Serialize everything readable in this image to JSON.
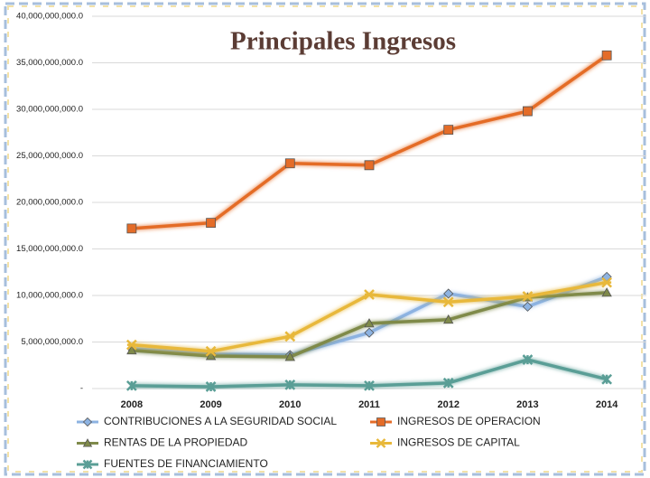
{
  "chart_data": {
    "type": "line",
    "title": "Principales Ingresos",
    "categories": [
      "2008",
      "2009",
      "2010",
      "2011",
      "2012",
      "2013",
      "2014"
    ],
    "series": [
      {
        "name": "CONTRIBUCIONES A LA SEGURIDAD SOCIAL",
        "color": "#8db3e2",
        "marker": "diamond",
        "values": [
          4300000000,
          3700000000,
          3600000000,
          6000000000,
          10200000000,
          8800000000,
          12000000000
        ]
      },
      {
        "name": "INGRESOS DE OPERACION",
        "color": "#e46c28",
        "marker": "square",
        "values": [
          17200000000,
          17800000000,
          24200000000,
          24000000000,
          27800000000,
          29800000000,
          35800000000
        ]
      },
      {
        "name": "RENTAS DE LA PROPIEDAD",
        "color": "#7f8a4a",
        "marker": "triangle",
        "values": [
          4100000000,
          3500000000,
          3400000000,
          7000000000,
          7400000000,
          9800000000,
          10300000000
        ]
      },
      {
        "name": "INGRESOS DE CAPITAL",
        "color": "#e8b83a",
        "marker": "x",
        "values": [
          4700000000,
          4000000000,
          5600000000,
          10100000000,
          9300000000,
          9900000000,
          11400000000
        ]
      },
      {
        "name": "FUENTES DE FINANCIAMIENTO",
        "color": "#5a9e96",
        "marker": "asterisk",
        "values": [
          300000000,
          200000000,
          400000000,
          300000000,
          600000000,
          3100000000,
          1000000000
        ]
      }
    ],
    "ylim": [
      0,
      40000000000
    ],
    "yticks": [
      {
        "value": 0,
        "label": "-"
      },
      {
        "value": 5000000000,
        "label": "5,000,000,000.0"
      },
      {
        "value": 10000000000,
        "label": "10,000,000,000.0"
      },
      {
        "value": 15000000000,
        "label": "15,000,000,000.0"
      },
      {
        "value": 20000000000,
        "label": "20,000,000,000.0"
      },
      {
        "value": 25000000000,
        "label": "25,000,000,000.0"
      },
      {
        "value": 30000000000,
        "label": "30,000,000,000.0"
      },
      {
        "value": 35000000000,
        "label": "35,000,000,000.0"
      },
      {
        "value": 40000000000,
        "label": "40,000,000,000.0"
      }
    ],
    "grid": true,
    "legend": "bottom"
  }
}
